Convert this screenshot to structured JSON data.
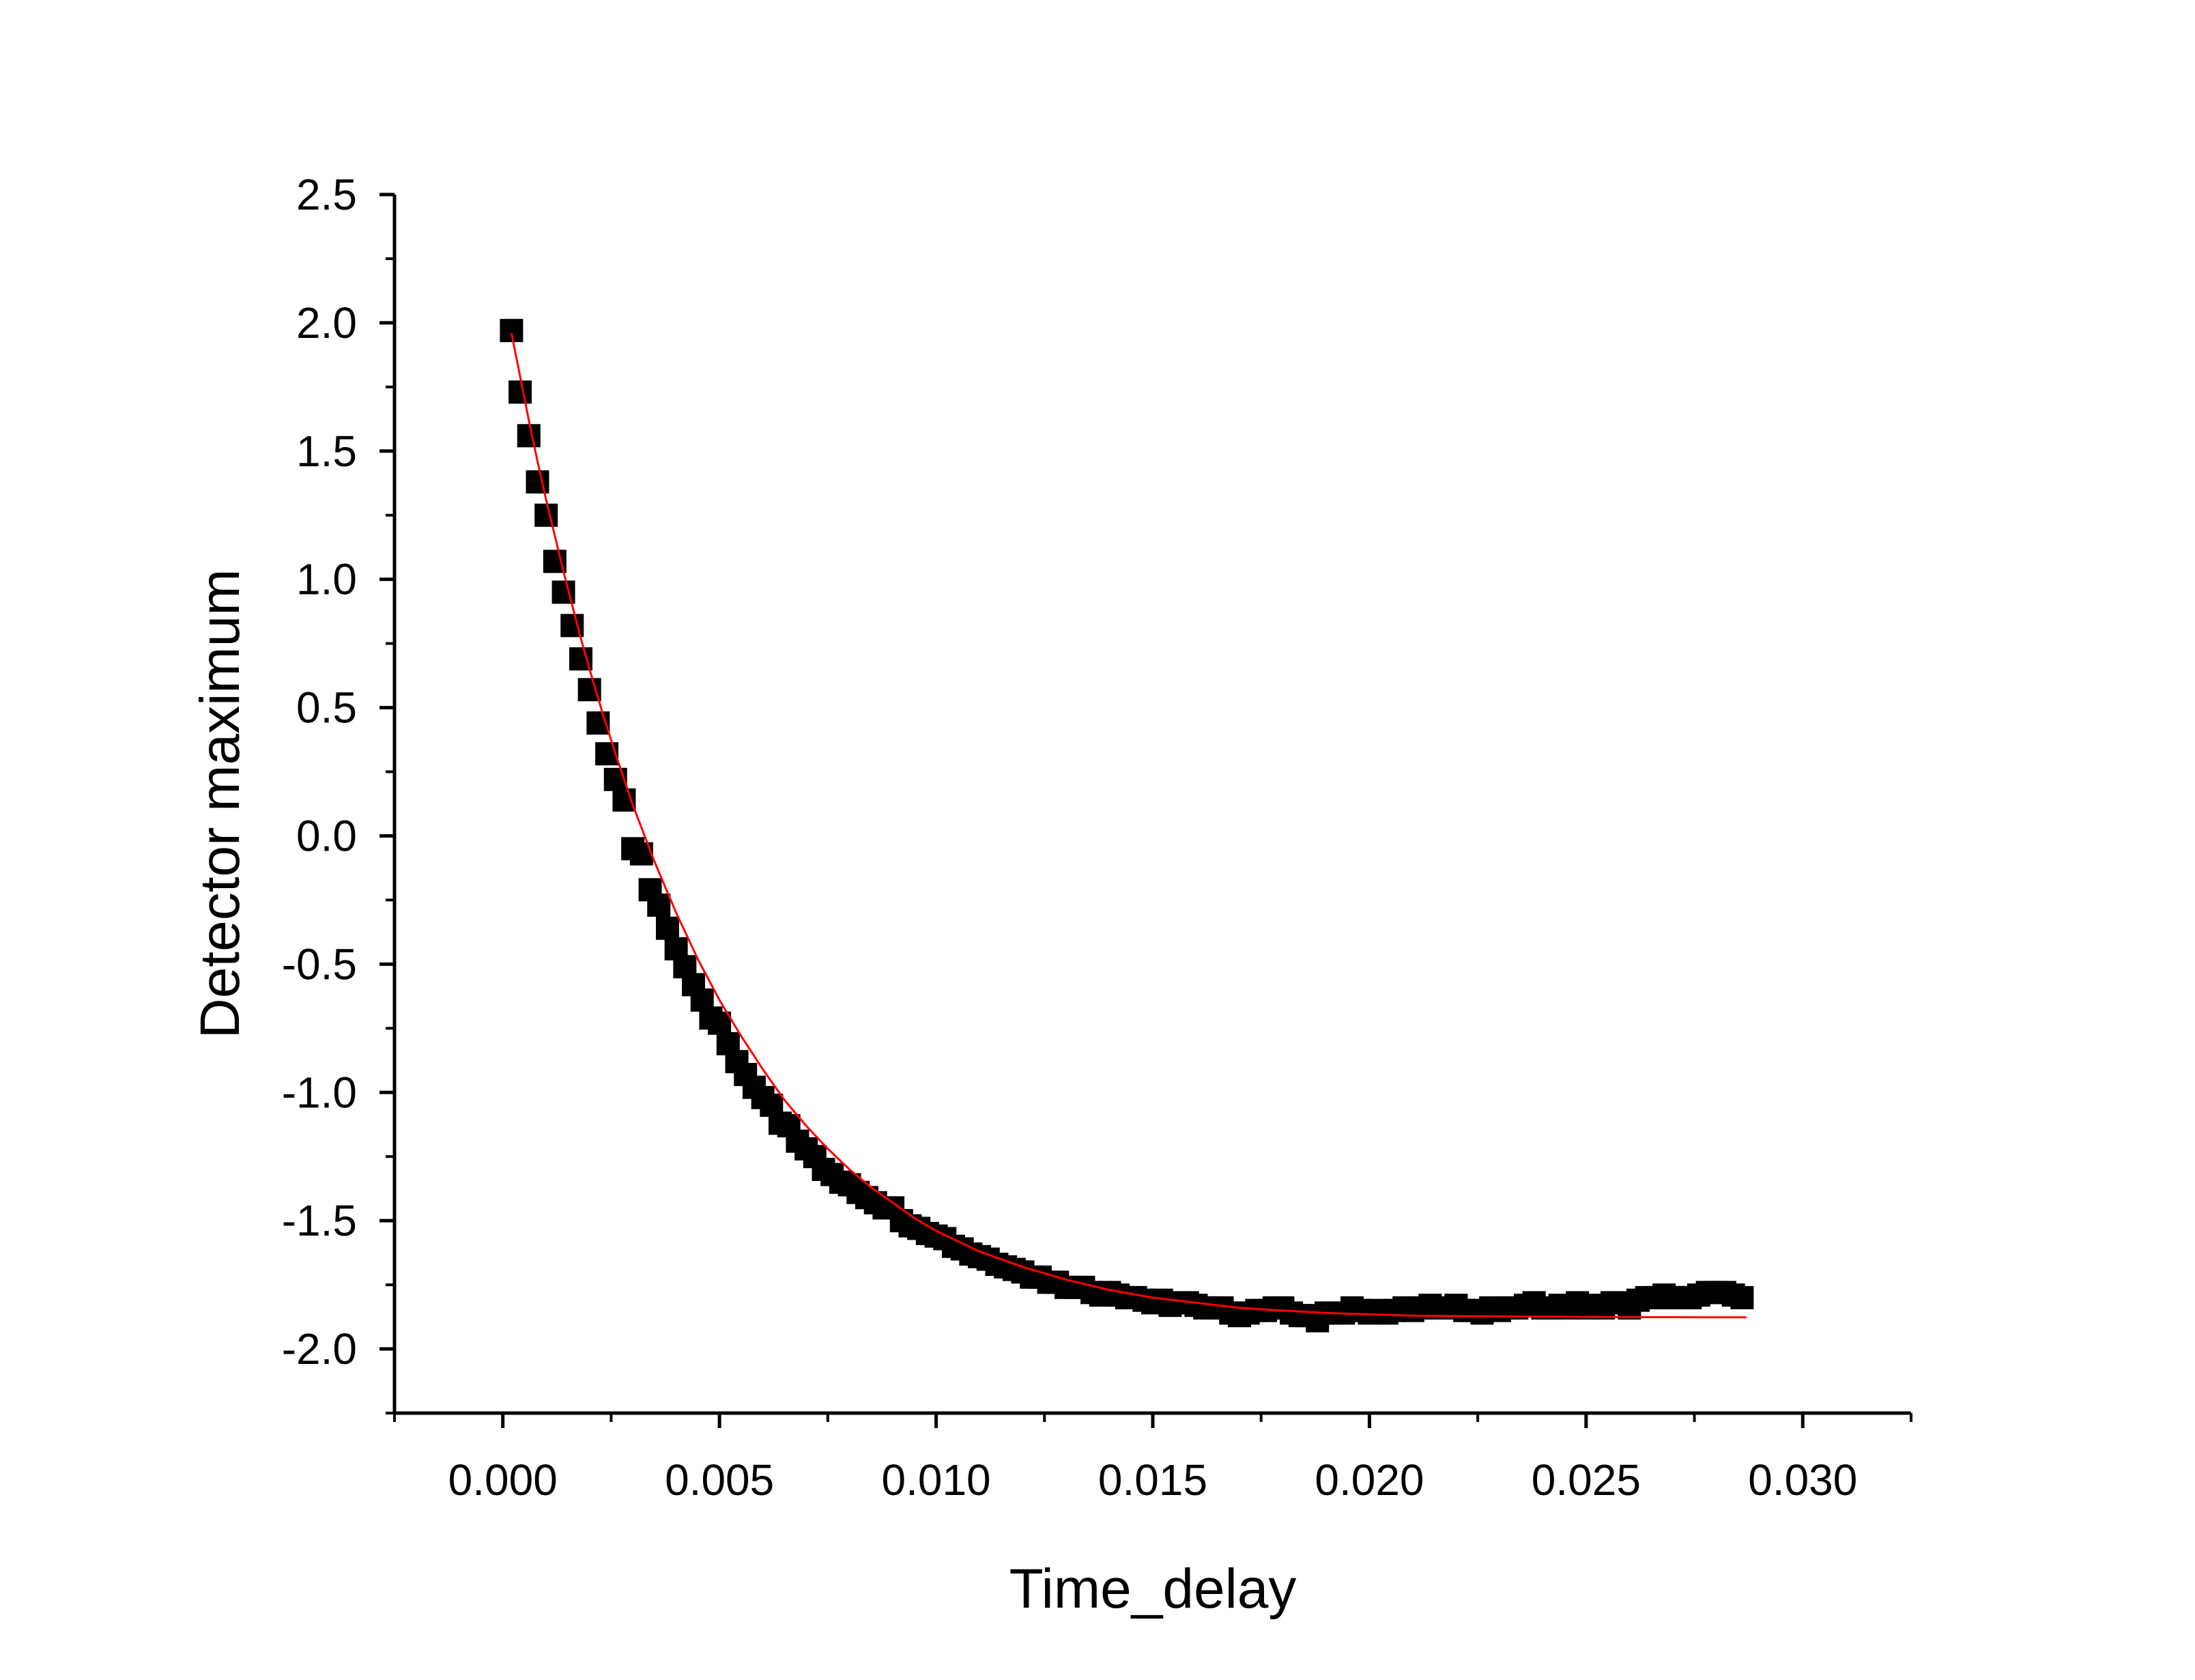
{
  "chart_data": {
    "type": "scatter",
    "title": "",
    "xlabel": "Time_delay",
    "ylabel": "Detector maximum",
    "xlim": [
      -0.0025,
      0.0325
    ],
    "ylim": [
      -2.25,
      2.5
    ],
    "x_ticks": [
      0.0,
      0.005,
      0.01,
      0.015,
      0.02,
      0.025,
      0.03
    ],
    "x_tick_labels": [
      "0.000",
      "0.005",
      "0.010",
      "0.015",
      "0.020",
      "0.025",
      "0.030"
    ],
    "y_ticks": [
      2.5,
      2.0,
      1.5,
      1.0,
      0.5,
      0.0,
      -0.5,
      -1.0,
      -1.5,
      -2.0
    ],
    "y_tick_labels": [
      "2.5",
      "2.0",
      "1.5",
      "1.0",
      "0.5",
      "0.0",
      "-0.5",
      "-1.0",
      "-1.5",
      "-2.0"
    ],
    "grid": false,
    "legend": "none",
    "marker_color": "#000000",
    "fit_color": "#ff0000",
    "series": [
      {
        "kind": "markers",
        "marker": "square",
        "x": [
          0.0002,
          0.0004,
          0.0006,
          0.0008,
          0.001,
          0.0012,
          0.0014,
          0.0016,
          0.0018,
          0.002,
          0.0022,
          0.0024,
          0.0026,
          0.0028,
          0.003,
          0.0032,
          0.0034,
          0.0036,
          0.0038,
          0.004,
          0.0042,
          0.0044,
          0.0046,
          0.0048,
          0.005,
          0.0052,
          0.0054,
          0.0056,
          0.0058,
          0.006,
          0.0062,
          0.0064,
          0.0066,
          0.0068,
          0.007,
          0.0072,
          0.0074,
          0.0076,
          0.0078,
          0.008,
          0.0082,
          0.0084,
          0.0086,
          0.0088,
          0.009,
          0.0092,
          0.0094,
          0.0096,
          0.0098,
          0.01,
          0.0102,
          0.0104,
          0.0106,
          0.0108,
          0.011,
          0.0112,
          0.0114,
          0.0116,
          0.0118,
          0.012,
          0.0122,
          0.0124,
          0.0126,
          0.0128,
          0.013,
          0.0132,
          0.0134,
          0.0136,
          0.0138,
          0.014,
          0.0142,
          0.0144,
          0.0146,
          0.0148,
          0.015,
          0.0152,
          0.0154,
          0.0156,
          0.0158,
          0.016,
          0.0162,
          0.0164,
          0.0166,
          0.0168,
          0.017,
          0.0172,
          0.0174,
          0.0176,
          0.0178,
          0.018,
          0.0182,
          0.0184,
          0.0186,
          0.0188,
          0.019,
          0.0192,
          0.0194,
          0.0196,
          0.0198,
          0.02,
          0.0202,
          0.0204,
          0.0206,
          0.0208,
          0.021,
          0.0212,
          0.0214,
          0.0216,
          0.0218,
          0.022,
          0.0222,
          0.0224,
          0.0226,
          0.0228,
          0.023,
          0.0232,
          0.0234,
          0.0236,
          0.0238,
          0.024,
          0.0242,
          0.0244,
          0.0246,
          0.0248,
          0.025,
          0.0252,
          0.0254,
          0.0256,
          0.0258,
          0.026,
          0.0262,
          0.0264,
          0.0266,
          0.0268,
          0.027,
          0.0272,
          0.0274,
          0.0276,
          0.0278,
          0.028,
          0.0282,
          0.0284,
          0.0286
        ],
        "y": [
          1.97,
          1.73,
          1.56,
          1.38,
          1.25,
          1.07,
          0.95,
          0.82,
          0.69,
          0.57,
          0.44,
          0.32,
          0.22,
          0.14,
          -0.05,
          -0.07,
          -0.21,
          -0.27,
          -0.36,
          -0.44,
          -0.51,
          -0.58,
          -0.64,
          -0.71,
          -0.73,
          -0.81,
          -0.88,
          -0.93,
          -0.98,
          -1.02,
          -1.05,
          -1.12,
          -1.13,
          -1.19,
          -1.22,
          -1.25,
          -1.3,
          -1.32,
          -1.35,
          -1.36,
          -1.39,
          -1.41,
          -1.43,
          -1.45,
          -1.45,
          -1.5,
          -1.52,
          -1.53,
          -1.55,
          -1.56,
          -1.57,
          -1.6,
          -1.61,
          -1.63,
          -1.64,
          -1.65,
          -1.67,
          -1.68,
          -1.69,
          -1.7,
          -1.72,
          -1.72,
          -1.74,
          -1.74,
          -1.76,
          -1.76,
          -1.76,
          -1.78,
          -1.79,
          -1.78,
          -1.79,
          -1.8,
          -1.8,
          -1.81,
          -1.82,
          -1.81,
          -1.83,
          -1.82,
          -1.82,
          -1.83,
          -1.84,
          -1.84,
          -1.84,
          -1.86,
          -1.87,
          -1.86,
          -1.85,
          -1.85,
          -1.84,
          -1.84,
          -1.86,
          -1.87,
          -1.87,
          -1.89,
          -1.86,
          -1.86,
          -1.86,
          -1.84,
          -1.85,
          -1.86,
          -1.85,
          -1.86,
          -1.85,
          -1.84,
          -1.85,
          -1.84,
          -1.83,
          -1.84,
          -1.84,
          -1.83,
          -1.85,
          -1.85,
          -1.86,
          -1.84,
          -1.85,
          -1.84,
          -1.84,
          -1.83,
          -1.82,
          -1.84,
          -1.84,
          -1.83,
          -1.84,
          -1.82,
          -1.84,
          -1.83,
          -1.84,
          -1.82,
          -1.82,
          -1.84,
          -1.81,
          -1.8,
          -1.8,
          -1.79,
          -1.8,
          -1.8,
          -1.8,
          -1.79,
          -1.78,
          -1.78,
          -1.78,
          -1.79,
          -1.8
        ]
      },
      {
        "kind": "fit-line",
        "x": [
          0.0002,
          0.0004,
          0.0006,
          0.0008,
          0.001,
          0.0012,
          0.0014,
          0.0016,
          0.0018,
          0.002,
          0.0023,
          0.0026,
          0.003,
          0.0035,
          0.004,
          0.0045,
          0.005,
          0.0055,
          0.006,
          0.0065,
          0.007,
          0.0075,
          0.008,
          0.0085,
          0.009,
          0.0095,
          0.01,
          0.011,
          0.012,
          0.013,
          0.014,
          0.015,
          0.016,
          0.017,
          0.018,
          0.019,
          0.02,
          0.021,
          0.022,
          0.023,
          0.024,
          0.025,
          0.026,
          0.027,
          0.028,
          0.0287
        ],
        "y": [
          1.96,
          1.79,
          1.62,
          1.46,
          1.31,
          1.17,
          1.03,
          0.9,
          0.77,
          0.65,
          0.48,
          0.32,
          0.12,
          -0.1,
          -0.3,
          -0.48,
          -0.64,
          -0.78,
          -0.91,
          -1.03,
          -1.13,
          -1.22,
          -1.3,
          -1.37,
          -1.43,
          -1.49,
          -1.54,
          -1.62,
          -1.68,
          -1.73,
          -1.77,
          -1.8,
          -1.82,
          -1.84,
          -1.85,
          -1.86,
          -1.865,
          -1.87,
          -1.872,
          -1.873,
          -1.874,
          -1.875,
          -1.876,
          -1.876,
          -1.877,
          -1.877
        ]
      }
    ]
  }
}
